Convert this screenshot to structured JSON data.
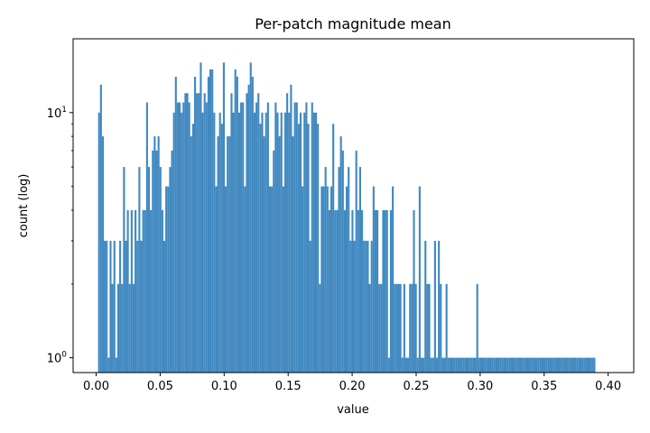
{
  "chart_data": {
    "type": "bar",
    "title": "Per-patch magnitude mean",
    "xlabel": "value",
    "ylabel": "count (log)",
    "y_scale": "log",
    "xlim": [
      -0.018,
      0.42
    ],
    "ylim": [
      0.87,
      20
    ],
    "x_ticks": [
      0.0,
      0.05,
      0.1,
      0.15,
      0.2,
      0.25,
      0.3,
      0.35,
      0.4
    ],
    "x_tick_labels": [
      "0.00",
      "0.05",
      "0.10",
      "0.15",
      "0.20",
      "0.25",
      "0.30",
      "0.35",
      "0.40"
    ],
    "y_ticks": [
      1,
      10
    ],
    "y_tick_labels": [
      "10^0",
      "10^1"
    ],
    "grid": false,
    "bar_color": "#4189c0",
    "bins": {
      "start": 0.0015,
      "width": 0.0015
    },
    "counts": [
      10,
      13,
      8,
      3,
      3,
      1,
      3,
      2,
      3,
      1,
      2,
      3,
      2,
      6,
      3,
      4,
      2,
      4,
      2,
      4,
      3,
      6,
      3,
      4,
      4,
      11,
      6,
      4,
      7,
      8,
      7,
      8,
      6,
      4,
      3,
      5,
      5,
      6,
      7,
      10,
      14,
      11,
      11,
      10,
      11,
      12,
      12,
      11,
      8,
      9,
      14,
      12,
      12,
      16,
      10,
      12,
      11,
      14,
      15,
      15,
      10,
      5,
      8,
      10,
      9,
      16,
      5,
      8,
      8,
      12,
      10,
      15,
      14,
      10,
      11,
      11,
      5,
      12,
      13,
      16,
      14,
      10,
      11,
      12,
      9,
      10,
      8,
      10,
      11,
      5,
      5,
      7,
      11,
      10,
      8,
      10,
      5,
      10,
      12,
      10,
      13,
      8,
      11,
      11,
      9,
      10,
      5,
      10,
      11,
      9,
      3,
      11,
      10,
      10,
      9,
      2,
      5,
      5,
      6,
      5,
      4,
      5,
      9,
      4,
      4,
      6,
      8,
      7,
      4,
      5,
      6,
      3,
      4,
      3,
      7,
      4,
      6,
      4,
      3,
      3,
      3,
      2,
      3,
      5,
      4,
      4,
      2,
      2,
      4,
      4,
      4,
      1,
      4,
      5,
      2,
      2,
      2,
      2,
      1,
      2,
      1,
      1,
      2,
      2,
      4,
      2,
      1,
      5,
      1,
      1,
      3,
      2,
      2,
      1,
      1,
      3,
      1,
      3,
      2,
      1,
      1,
      2,
      1,
      1,
      1,
      1,
      1,
      1,
      1,
      1,
      1,
      1,
      1,
      1,
      1,
      1,
      1,
      2,
      1,
      1,
      1,
      1,
      1,
      1,
      1,
      1,
      1,
      1,
      1,
      1,
      1,
      1,
      1,
      1,
      1,
      1,
      1,
      1,
      1,
      1,
      1,
      1,
      1,
      1,
      1,
      1,
      1,
      1,
      1,
      1,
      1,
      1,
      1,
      1,
      1,
      1,
      1,
      1,
      1,
      1,
      1,
      1,
      1,
      1,
      1,
      1,
      1,
      1,
      1,
      1,
      1,
      1,
      1,
      1,
      1,
      1,
      1,
      1,
      1
    ]
  }
}
